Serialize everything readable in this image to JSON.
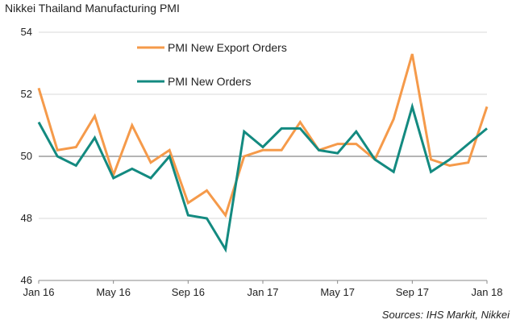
{
  "title": "Nikkei Thailand Manufacturing PMI",
  "source": "Sources: IHS Markit, Nikkei",
  "chart_data": {
    "type": "line",
    "title": "Nikkei Thailand Manufacturing PMI",
    "x": [
      "Jan 16",
      "Feb 16",
      "Mar 16",
      "Apr 16",
      "May 16",
      "Jun 16",
      "Jul 16",
      "Aug 16",
      "Sep 16",
      "Oct 16",
      "Nov 16",
      "Dec 16",
      "Jan 17",
      "Feb 17",
      "Mar 17",
      "Apr 17",
      "May 17",
      "Jun 17",
      "Jul 17",
      "Aug 17",
      "Sep 17",
      "Oct 17",
      "Nov 17",
      "Dec 17",
      "Jan 18"
    ],
    "xtick_labels": [
      "Jan 16",
      "May 16",
      "Sep 16",
      "Jan 17",
      "May 17",
      "Sep 17",
      "Jan 18"
    ],
    "ytick_labels": [
      "46",
      "48",
      "50",
      "52",
      "54"
    ],
    "ylim": [
      46,
      54
    ],
    "reference_line": 50,
    "grid": "horizontal",
    "legend_position": "top-center",
    "series": [
      {
        "name": "PMI New Export Orders",
        "color": "#f59a4a",
        "values": [
          52.2,
          50.2,
          50.3,
          51.3,
          49.4,
          51.0,
          49.8,
          50.2,
          48.5,
          48.9,
          48.1,
          50.0,
          50.2,
          50.2,
          51.1,
          50.2,
          50.4,
          50.4,
          49.9,
          51.2,
          53.3,
          49.9,
          49.7,
          49.8,
          51.6
        ]
      },
      {
        "name": "PMI New Orders",
        "color": "#138a80",
        "values": [
          51.1,
          50.0,
          49.7,
          50.6,
          49.3,
          49.6,
          49.3,
          50.0,
          48.1,
          48.0,
          47.0,
          50.8,
          50.3,
          50.9,
          50.9,
          50.2,
          50.1,
          50.8,
          49.9,
          49.5,
          51.6,
          49.5,
          49.9,
          50.4,
          50.9
        ]
      }
    ]
  }
}
